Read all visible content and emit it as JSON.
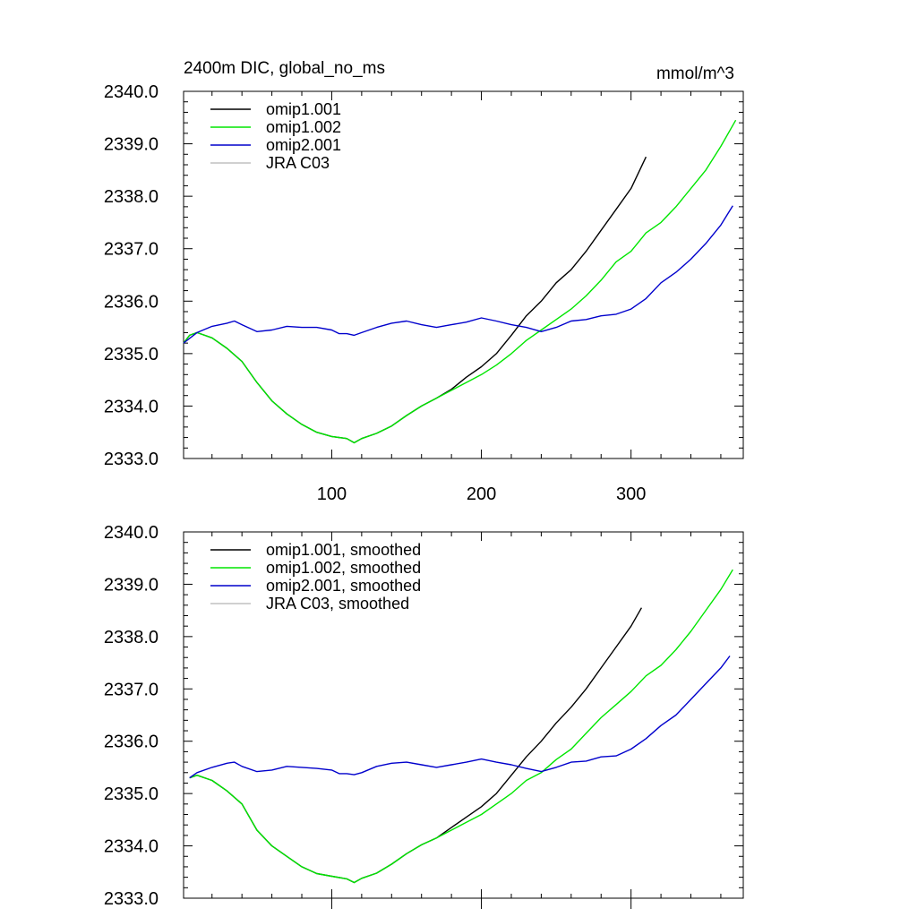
{
  "chart_data": [
    {
      "type": "line",
      "title": "2400m DIC, global_no_ms",
      "units": "mmol/m^3",
      "xlim": [
        1,
        375
      ],
      "ylim": [
        2333.0,
        2340.0
      ],
      "x_major_ticks": [
        100,
        200,
        300
      ],
      "x_tick_labels": [
        "100",
        "200",
        "300"
      ],
      "y_major_ticks": [
        2333.0,
        2334.0,
        2335.0,
        2336.0,
        2337.0,
        2338.0,
        2339.0,
        2340.0
      ],
      "y_tick_labels": [
        "2333.0",
        "2334.0",
        "2335.0",
        "2336.0",
        "2337.0",
        "2338.0",
        "2339.0",
        "2340.0"
      ],
      "legend_position": "top-left",
      "grid": false,
      "series": [
        {
          "name": "omip1.001",
          "color": "#000000",
          "x": [
            1,
            5,
            10,
            20,
            30,
            40,
            50,
            60,
            70,
            80,
            90,
            100,
            110,
            115,
            120,
            130,
            140,
            150,
            160,
            170,
            180,
            190,
            200,
            210,
            220,
            230,
            240,
            250,
            260,
            270,
            280,
            290,
            300,
            310
          ],
          "y": [
            2335.2,
            2335.35,
            2335.4,
            2335.3,
            2335.1,
            2334.85,
            2334.45,
            2334.1,
            2333.85,
            2333.65,
            2333.5,
            2333.42,
            2333.38,
            2333.3,
            2333.38,
            2333.48,
            2333.62,
            2333.82,
            2334.0,
            2334.15,
            2334.32,
            2334.55,
            2334.75,
            2335.0,
            2335.35,
            2335.72,
            2336.0,
            2336.35,
            2336.6,
            2336.95,
            2337.35,
            2337.75,
            2338.15,
            2338.75
          ]
        },
        {
          "name": "omip1.002",
          "color": "#00e600",
          "x": [
            1,
            5,
            10,
            20,
            30,
            40,
            50,
            60,
            70,
            80,
            90,
            100,
            110,
            115,
            120,
            130,
            140,
            150,
            160,
            170,
            180,
            190,
            200,
            210,
            220,
            230,
            240,
            250,
            260,
            270,
            280,
            290,
            300,
            310,
            320,
            330,
            340,
            350,
            360,
            370
          ],
          "y": [
            2335.2,
            2335.35,
            2335.4,
            2335.3,
            2335.1,
            2334.85,
            2334.45,
            2334.1,
            2333.85,
            2333.65,
            2333.5,
            2333.42,
            2333.38,
            2333.3,
            2333.38,
            2333.48,
            2333.62,
            2333.82,
            2334.0,
            2334.15,
            2334.3,
            2334.45,
            2334.6,
            2334.78,
            2335.0,
            2335.25,
            2335.45,
            2335.65,
            2335.85,
            2336.1,
            2336.4,
            2336.75,
            2336.95,
            2337.3,
            2337.5,
            2337.8,
            2338.15,
            2338.5,
            2338.95,
            2339.45
          ]
        },
        {
          "name": "omip2.001",
          "color": "#0000cc",
          "x": [
            1,
            10,
            20,
            30,
            35,
            40,
            50,
            60,
            70,
            80,
            90,
            100,
            105,
            110,
            115,
            120,
            130,
            140,
            150,
            160,
            170,
            180,
            190,
            200,
            210,
            220,
            230,
            240,
            250,
            260,
            270,
            280,
            290,
            300,
            310,
            320,
            330,
            340,
            350,
            360,
            368
          ],
          "y": [
            2335.2,
            2335.4,
            2335.52,
            2335.58,
            2335.62,
            2335.55,
            2335.42,
            2335.45,
            2335.52,
            2335.5,
            2335.5,
            2335.45,
            2335.38,
            2335.38,
            2335.35,
            2335.4,
            2335.5,
            2335.58,
            2335.62,
            2335.55,
            2335.5,
            2335.55,
            2335.6,
            2335.68,
            2335.62,
            2335.55,
            2335.5,
            2335.42,
            2335.5,
            2335.62,
            2335.65,
            2335.72,
            2335.75,
            2335.85,
            2336.05,
            2336.35,
            2336.55,
            2336.8,
            2337.1,
            2337.45,
            2337.82
          ]
        },
        {
          "name": "JRA C03",
          "color": "#c0c0c0",
          "x": [],
          "y": []
        }
      ]
    },
    {
      "type": "line",
      "title": "",
      "units": "",
      "xlim": [
        1,
        375
      ],
      "ylim": [
        2333.0,
        2340.0
      ],
      "x_major_ticks": [
        100,
        200,
        300
      ],
      "x_tick_labels": [],
      "y_major_ticks": [
        2333.0,
        2334.0,
        2335.0,
        2336.0,
        2337.0,
        2338.0,
        2339.0,
        2340.0
      ],
      "y_tick_labels": [
        "2333.0",
        "2334.0",
        "2335.0",
        "2336.0",
        "2337.0",
        "2338.0",
        "2339.0",
        "2340.0"
      ],
      "legend_position": "top-left",
      "grid": false,
      "series": [
        {
          "name": "omip1.001, smoothed",
          "color": "#000000",
          "x": [
            5,
            10,
            20,
            30,
            40,
            50,
            60,
            70,
            80,
            90,
            100,
            110,
            115,
            120,
            130,
            140,
            150,
            160,
            170,
            180,
            190,
            200,
            210,
            220,
            230,
            240,
            250,
            260,
            270,
            280,
            290,
            300,
            307
          ],
          "y": [
            2335.3,
            2335.35,
            2335.25,
            2335.05,
            2334.8,
            2334.3,
            2334.0,
            2333.8,
            2333.6,
            2333.47,
            2333.42,
            2333.37,
            2333.3,
            2333.38,
            2333.48,
            2333.65,
            2333.85,
            2334.02,
            2334.15,
            2334.35,
            2334.55,
            2334.75,
            2335.0,
            2335.35,
            2335.7,
            2336.0,
            2336.35,
            2336.65,
            2337.0,
            2337.4,
            2337.8,
            2338.2,
            2338.55
          ]
        },
        {
          "name": "omip1.002, smoothed",
          "color": "#00e600",
          "x": [
            5,
            10,
            20,
            30,
            40,
            50,
            60,
            70,
            80,
            90,
            100,
            110,
            115,
            120,
            130,
            140,
            150,
            160,
            170,
            180,
            190,
            200,
            210,
            220,
            230,
            240,
            250,
            260,
            270,
            280,
            290,
            300,
            310,
            320,
            330,
            340,
            350,
            360,
            368
          ],
          "y": [
            2335.3,
            2335.35,
            2335.25,
            2335.05,
            2334.8,
            2334.3,
            2334.0,
            2333.8,
            2333.6,
            2333.47,
            2333.42,
            2333.37,
            2333.3,
            2333.38,
            2333.48,
            2333.65,
            2333.85,
            2334.02,
            2334.15,
            2334.3,
            2334.45,
            2334.6,
            2334.8,
            2335.0,
            2335.25,
            2335.4,
            2335.65,
            2335.85,
            2336.15,
            2336.45,
            2336.7,
            2336.95,
            2337.25,
            2337.45,
            2337.75,
            2338.1,
            2338.5,
            2338.9,
            2339.28
          ]
        },
        {
          "name": "omip2.001, smoothed",
          "color": "#0000cc",
          "x": [
            5,
            10,
            20,
            30,
            35,
            40,
            50,
            60,
            70,
            80,
            90,
            100,
            105,
            110,
            115,
            120,
            130,
            140,
            150,
            160,
            170,
            180,
            190,
            200,
            210,
            220,
            230,
            240,
            250,
            260,
            270,
            280,
            290,
            300,
            310,
            320,
            330,
            340,
            350,
            360,
            366
          ],
          "y": [
            2335.3,
            2335.4,
            2335.5,
            2335.58,
            2335.6,
            2335.52,
            2335.42,
            2335.45,
            2335.52,
            2335.5,
            2335.48,
            2335.45,
            2335.38,
            2335.38,
            2335.36,
            2335.4,
            2335.52,
            2335.58,
            2335.6,
            2335.55,
            2335.5,
            2335.55,
            2335.6,
            2335.66,
            2335.6,
            2335.55,
            2335.48,
            2335.42,
            2335.5,
            2335.6,
            2335.62,
            2335.7,
            2335.72,
            2335.85,
            2336.05,
            2336.3,
            2336.5,
            2336.8,
            2337.1,
            2337.4,
            2337.63
          ]
        },
        {
          "name": "JRA C03, smoothed",
          "color": "#c0c0c0",
          "x": [],
          "y": []
        }
      ]
    }
  ]
}
